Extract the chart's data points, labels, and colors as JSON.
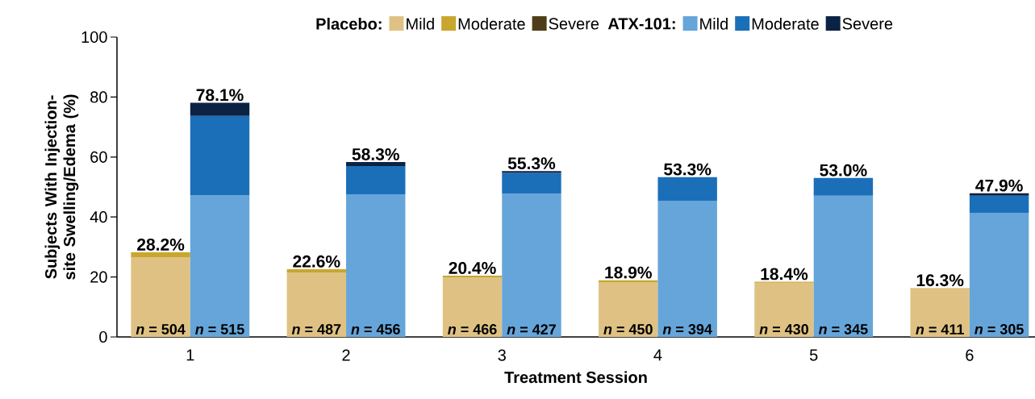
{
  "chart_data": [
    {
      "type": "bar",
      "stacked": true,
      "xlabel": "Treatment Session",
      "ylabel": "Subjects With Injection-site Swelling/Edema (%)",
      "legend_title": "Placebo:",
      "categories": [
        "1",
        "2",
        "3",
        "4",
        "5",
        "6"
      ],
      "series": [
        {
          "name": "Mild",
          "color": "#dfc283",
          "values": [
            26.6,
            21.5,
            19.9,
            18.3,
            18.1,
            16.3
          ]
        },
        {
          "name": "Moderate",
          "color": "#c9a62e",
          "values": [
            1.6,
            1.1,
            0.5,
            0.6,
            0.3,
            0
          ]
        },
        {
          "name": "Severe",
          "color": "#4e3d1a",
          "values": [
            0,
            0,
            0,
            0,
            0,
            0
          ]
        }
      ],
      "totals": [
        "28.2%",
        "22.6%",
        "20.4%",
        "18.9%",
        "18.4%",
        "16.3%"
      ],
      "annotations": [
        {
          "text": "*n* = 504",
          "x": "1"
        },
        {
          "text": "*n* = 487",
          "x": "2"
        },
        {
          "text": "*n* = 466",
          "x": "3"
        },
        {
          "text": "*n* = 450",
          "x": "4"
        },
        {
          "text": "*n* = 430",
          "x": "5"
        },
        {
          "text": "*n* = 411",
          "x": "6"
        }
      ],
      "ylim": [
        0,
        100
      ],
      "yticks": [
        0,
        20,
        40,
        60,
        80,
        100
      ],
      "legend": "top"
    },
    {
      "type": "bar",
      "stacked": true,
      "legend_title": "ATX-101:",
      "categories": [
        "1",
        "2",
        "3",
        "4",
        "5",
        "6"
      ],
      "series": [
        {
          "name": "Mild",
          "color": "#66a5d9",
          "values": [
            47.3,
            47.6,
            47.8,
            45.4,
            47.1,
            41.4
          ]
        },
        {
          "name": "Moderate",
          "color": "#1b6fb9",
          "values": [
            26.4,
            9.4,
            6.9,
            7.9,
            5.9,
            5.7
          ]
        },
        {
          "name": "Severe",
          "color": "#0b2245",
          "values": [
            4.4,
            1.3,
            0.6,
            0,
            0,
            0.8
          ]
        }
      ],
      "totals": [
        "78.1%",
        "58.3%",
        "55.3%",
        "53.3%",
        "53.0%",
        "47.9%"
      ],
      "annotations": [
        {
          "text": "*n* = 515",
          "x": "1"
        },
        {
          "text": "*n* = 456",
          "x": "2"
        },
        {
          "text": "*n* = 427",
          "x": "3"
        },
        {
          "text": "*n* = 394",
          "x": "4"
        },
        {
          "text": "*n* = 345",
          "x": "5"
        },
        {
          "text": "*n* = 305",
          "x": "6"
        }
      ],
      "ylim": [
        0,
        100
      ],
      "tick_labels": false,
      "legend": "top"
    }
  ]
}
